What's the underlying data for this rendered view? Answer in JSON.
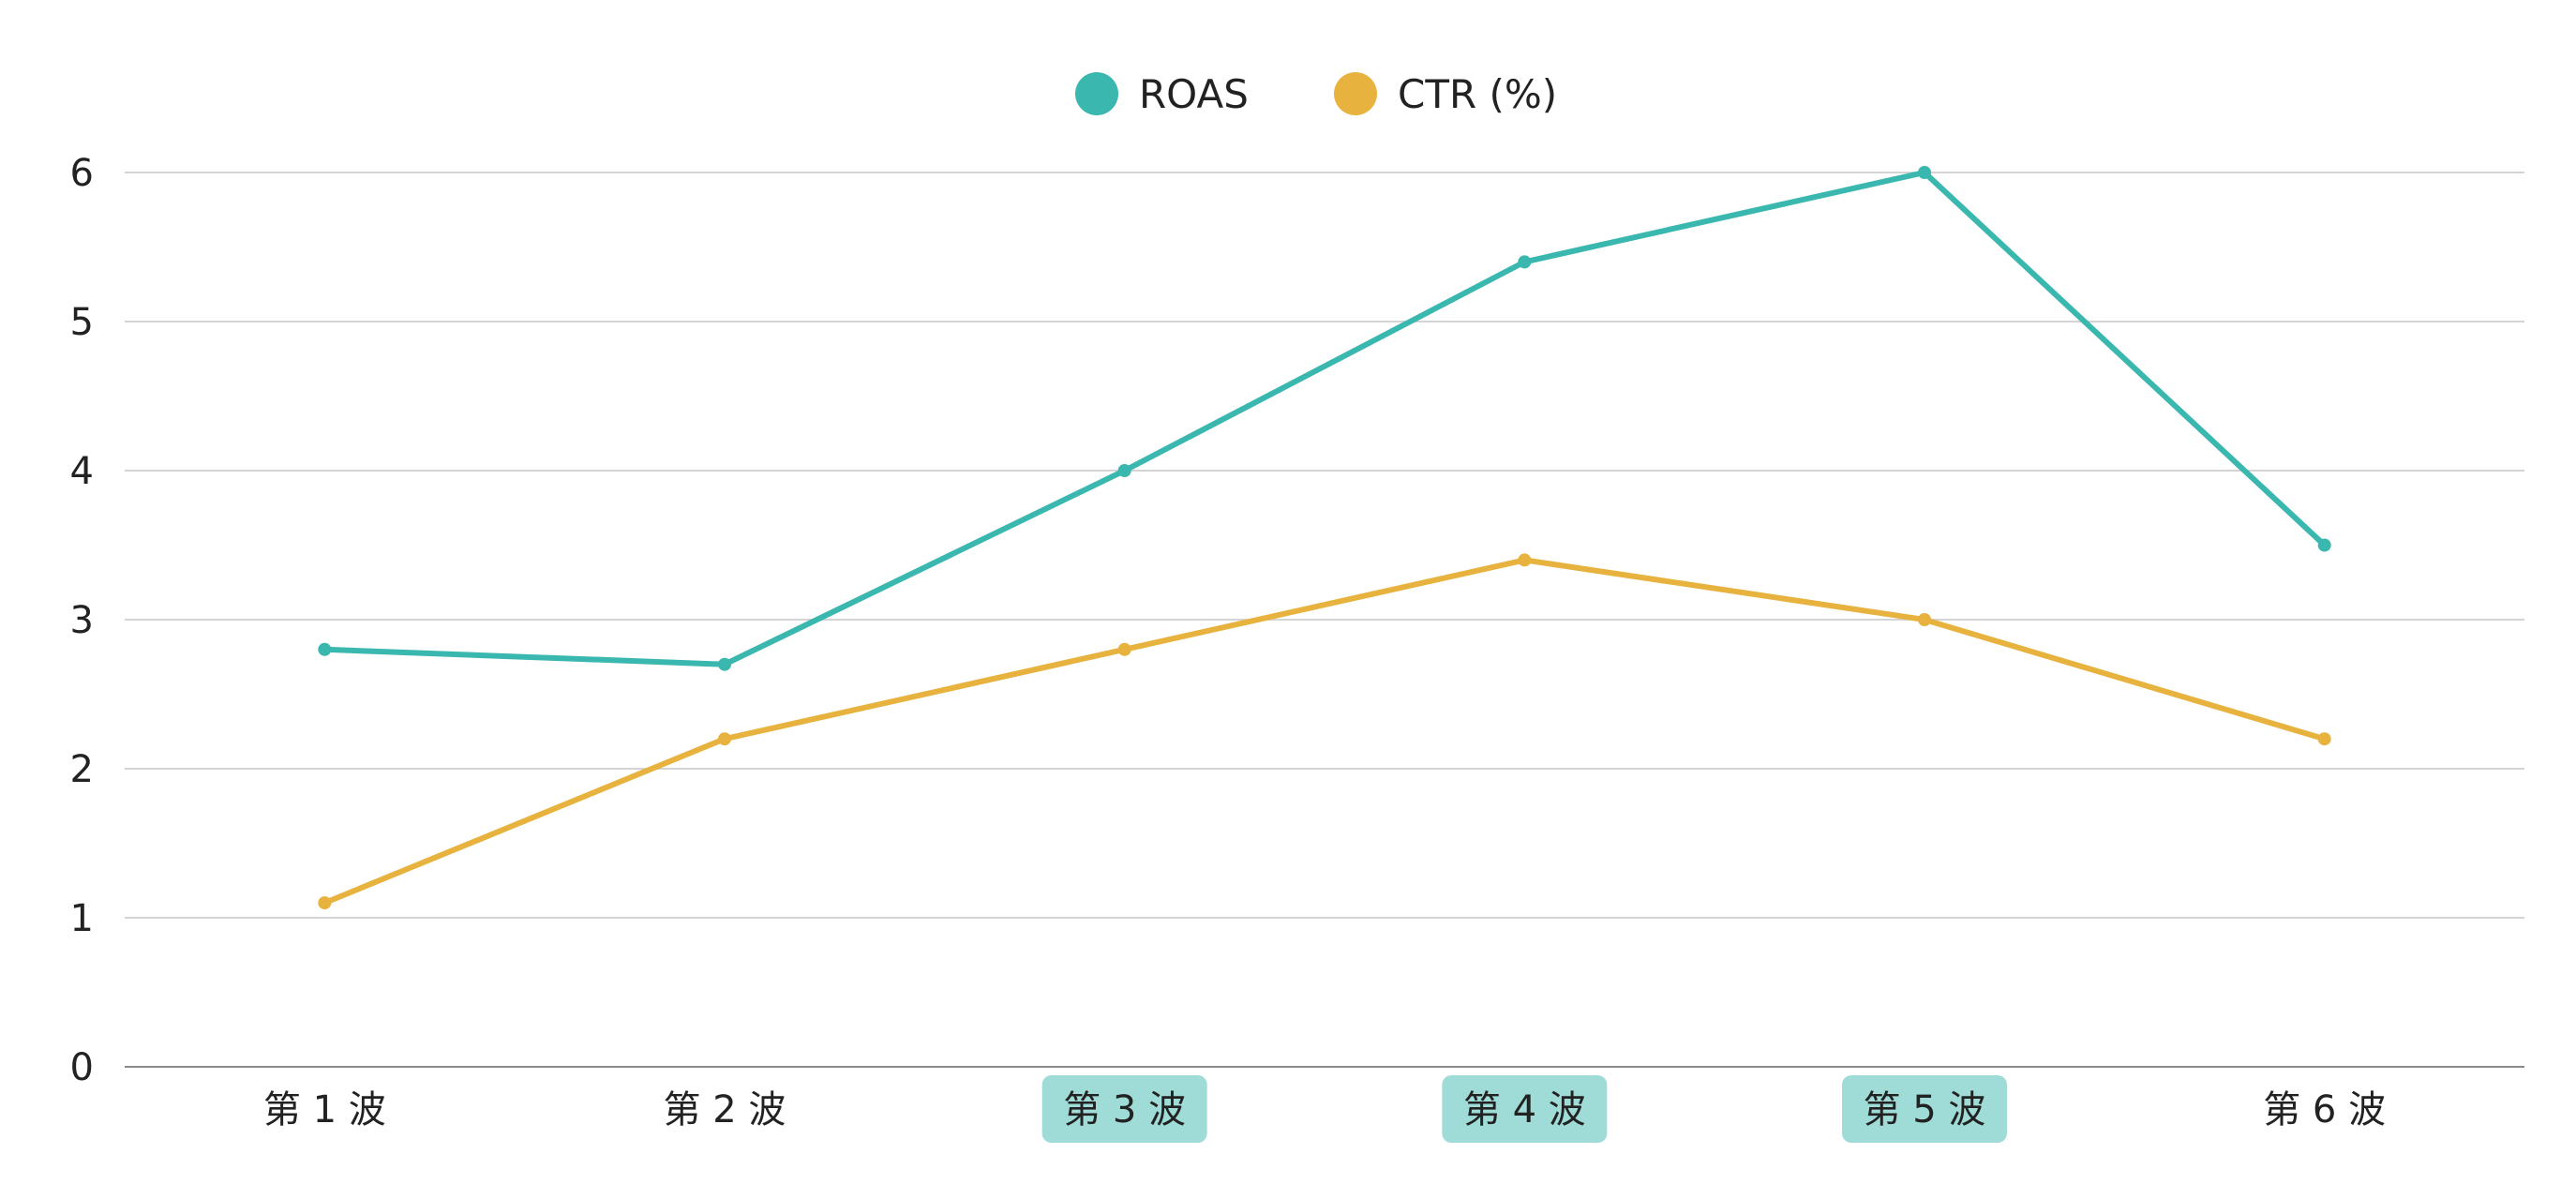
{
  "chart_data": {
    "type": "line",
    "title": "",
    "xlabel": "",
    "ylabel": "",
    "categories": [
      "第 1 波",
      "第 2 波",
      "第 3 波",
      "第 4 波",
      "第 5 波",
      "第 6 波"
    ],
    "highlighted_categories": [
      "第 3 波",
      "第 4 波",
      "第 5 波"
    ],
    "series": [
      {
        "name": "ROAS",
        "color": "#3AB7AF",
        "values": [
          2.8,
          2.7,
          4.0,
          5.4,
          6.0,
          3.5
        ]
      },
      {
        "name": "CTR (%)",
        "color": "#E7B23E",
        "values": [
          1.1,
          2.2,
          2.8,
          3.4,
          3.0,
          2.2
        ]
      }
    ],
    "ylim": [
      0,
      6
    ],
    "yticks": [
      0,
      1,
      2,
      3,
      4,
      5,
      6
    ],
    "grid": true,
    "legend_position": "top-center",
    "highlight_color": "#9FDCD7"
  }
}
